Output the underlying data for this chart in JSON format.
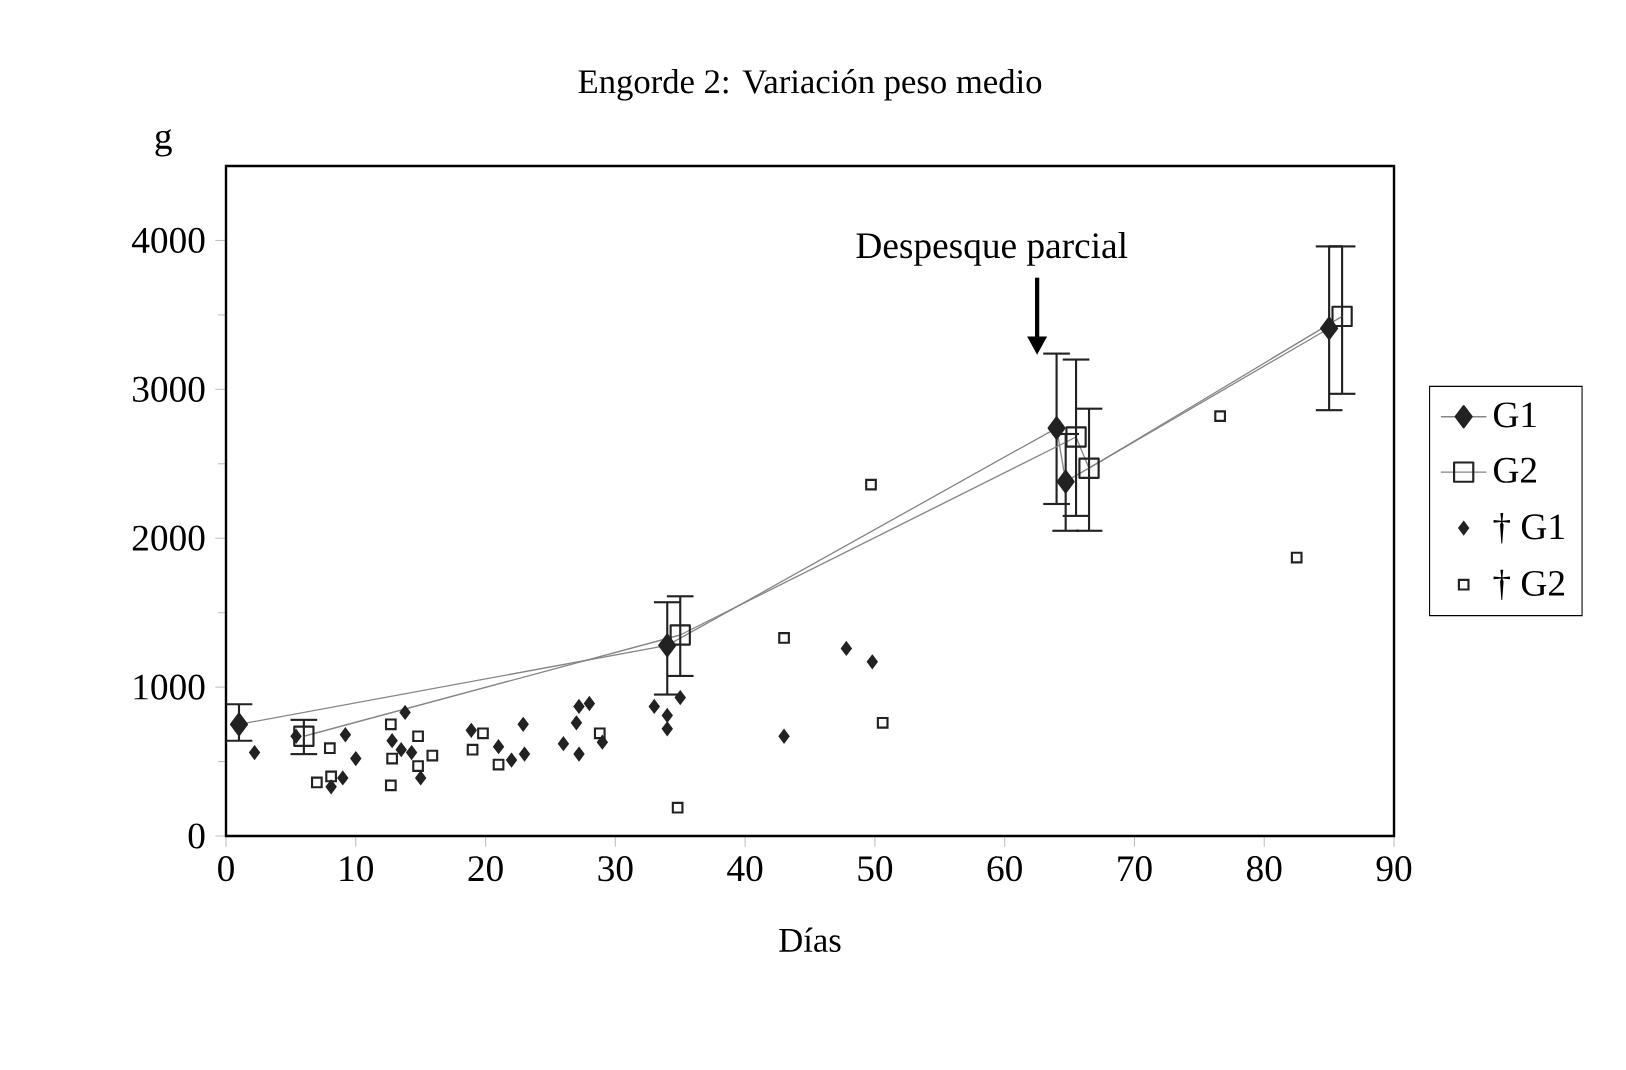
{
  "chart_data": {
    "type": "scatter",
    "title": "Engorde 2: Variación peso medio",
    "xlabel": "Días",
    "ylabel": "g",
    "xlim": [
      0,
      90
    ],
    "ylim": [
      0,
      4500
    ],
    "xticks": [
      0,
      10,
      20,
      30,
      40,
      50,
      60,
      70,
      80,
      90
    ],
    "yticks": [
      0,
      1000,
      2000,
      3000,
      4000
    ],
    "legend": "right",
    "grid": false,
    "annotations": [
      {
        "text": "Despesque parcial",
        "x": 62.5,
        "y": 3230
      }
    ],
    "series": [
      {
        "name": "G1",
        "type": "line",
        "marker": "diamond",
        "color": "#222222",
        "x": [
          1,
          34,
          64,
          64.7,
          85
        ],
        "values": [
          750,
          1280,
          2740,
          2380,
          3410
        ],
        "errors": [
          [
            640,
            885
          ],
          [
            950,
            1570
          ],
          [
            2230,
            3240
          ],
          [
            2050,
            2700
          ],
          [
            2860,
            3960
          ]
        ]
      },
      {
        "name": "G2",
        "type": "line",
        "marker": "square",
        "color": "#222222",
        "x": [
          6,
          35,
          65.5,
          66.5,
          86
        ],
        "values": [
          670,
          1350,
          2680,
          2470,
          3490
        ],
        "errors": [
          [
            550,
            780
          ],
          [
            1075,
            1610
          ],
          [
            2150,
            3200
          ],
          [
            2050,
            2870
          ],
          [
            2970,
            3960
          ]
        ]
      },
      {
        "name": "† G1",
        "type": "scatter",
        "marker": "diamond",
        "color": "#222222",
        "x": [
          2.2,
          5.4,
          9.2,
          10,
          9,
          8.1,
          13.8,
          12.8,
          13.5,
          14.3,
          15,
          18.9,
          21,
          22,
          22.9,
          23,
          26,
          27.2,
          27,
          27.2,
          28,
          29,
          33,
          34,
          34,
          35,
          43,
          47.8,
          49.8
        ],
        "values": [
          560,
          670,
          680,
          520,
          390,
          330,
          830,
          640,
          580,
          560,
          390,
          710,
          600,
          510,
          750,
          550,
          620,
          550,
          760,
          870,
          890,
          630,
          870,
          810,
          720,
          930,
          670,
          1260,
          1170
        ]
      },
      {
        "name": "† G2",
        "type": "scatter",
        "marker": "square",
        "color": "#222222",
        "x": [
          7,
          8.1,
          8,
          12.7,
          12.8,
          12.7,
          14.8,
          14.8,
          15.9,
          19,
          19.8,
          21,
          28.8,
          34.8,
          43,
          49.7,
          50.6,
          76.6,
          82.5
        ],
        "values": [
          360,
          400,
          590,
          750,
          520,
          340,
          670,
          470,
          540,
          580,
          690,
          480,
          690,
          190,
          1330,
          2360,
          760,
          2820,
          1870
        ]
      }
    ]
  }
}
